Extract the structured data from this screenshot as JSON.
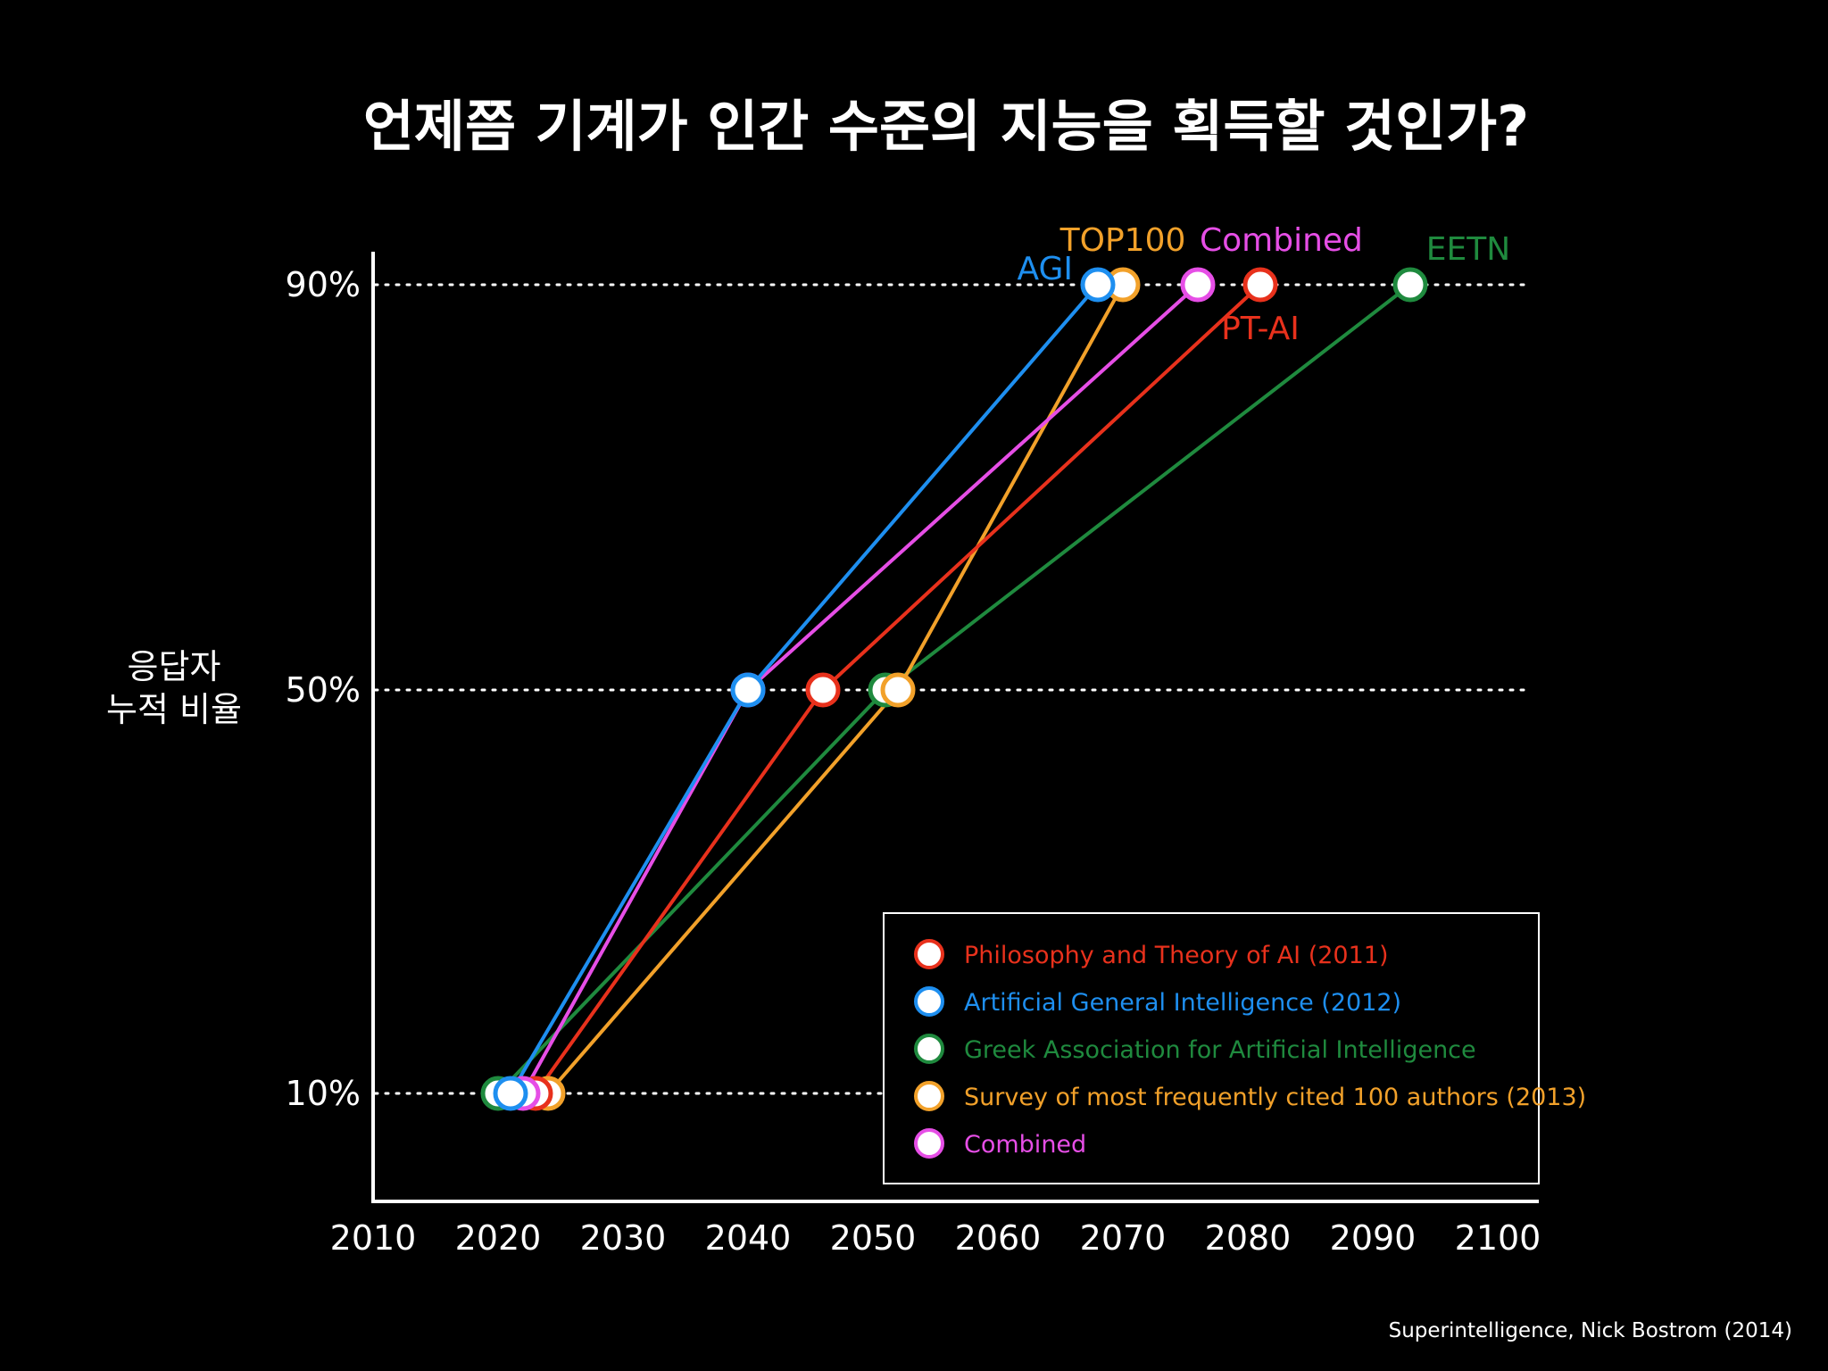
{
  "chart_data": {
    "type": "line",
    "title": "언제쯤 기계가 인간 수준의 지능을 획득할 것인가?",
    "ylabel_lines": [
      "응답자",
      "누적 비율"
    ],
    "xlim": [
      2010,
      2100
    ],
    "x_ticks": [
      "2010",
      "2020",
      "2030",
      "2040",
      "2050",
      "2060",
      "2070",
      "2080",
      "2090",
      "2100"
    ],
    "y_ticks": [
      "10%",
      "50%",
      "90%"
    ],
    "y_levels": [
      10,
      50,
      90
    ],
    "grid": "dotted horizontal lines at 10%, 50%, 90%",
    "legend_position": "bottom-right",
    "colors": {
      "ptai": "#e8311c",
      "agi": "#1e8ff0",
      "eetn": "#1f8a3e",
      "top100": "#f2a12a",
      "combined": "#e64ee6"
    },
    "series": [
      {
        "id": "eetn",
        "label": "EETN",
        "x": [
          2020,
          2051,
          2093
        ],
        "y": [
          10,
          50,
          90
        ]
      },
      {
        "id": "top100",
        "label": "TOP100",
        "x": [
          2024,
          2052,
          2070
        ],
        "y": [
          10,
          50,
          90
        ]
      },
      {
        "id": "ptai",
        "label": "PT-AI",
        "x": [
          2023,
          2046,
          2081
        ],
        "y": [
          10,
          50,
          90
        ]
      },
      {
        "id": "combined",
        "label": "Combined",
        "x": [
          2022,
          2040,
          2076
        ],
        "y": [
          10,
          50,
          90
        ]
      },
      {
        "id": "agi",
        "label": "AGI",
        "x": [
          2021,
          2040,
          2068
        ],
        "y": [
          10,
          50,
          90
        ]
      }
    ],
    "legend": [
      {
        "color_key": "ptai",
        "text": "Philosophy and Theory of AI (2011)"
      },
      {
        "color_key": "agi",
        "text": "Artificial General Intelligence (2012)"
      },
      {
        "color_key": "eetn",
        "text": "Greek Association for Artificial Intelligence"
      },
      {
        "color_key": "top100",
        "text": "Survey of most frequently cited 100 authors (2013)"
      },
      {
        "color_key": "combined",
        "text": "Combined"
      }
    ],
    "source": "Superintelligence, Nick Bostrom (2014)"
  }
}
